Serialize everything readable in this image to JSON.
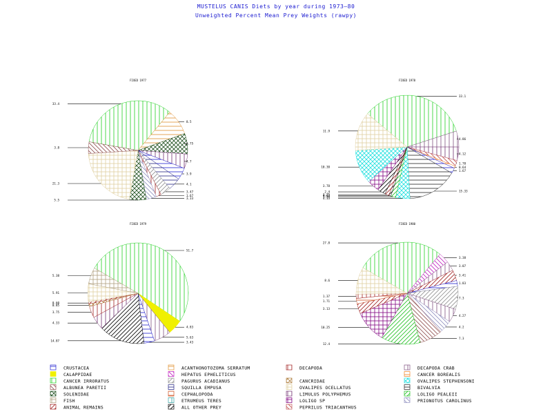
{
  "title": "MUSTELUS CANIS Diets by year during 1973–80",
  "subtitle": "Unweighted Percent Mean Prey Weights (rawpy)",
  "colors": {
    "CRUSTACEA": "#2020d0",
    "CALAPPIDAE": "#f0f000",
    "CANCER IRRORATUS": "#20d020",
    "ALBUNEA PARETII": "#905050",
    "SOLENIDAE": "#205020",
    "FISH": "#b0a080",
    "ANIMAL REMAINS": "#a02020",
    "ACANTHONOTOZOMA SERRATUM": "#e09030",
    "HEPATUS EPHELITICUS": "#c020c0",
    "PAGURUS ACADIANUS": "#909090",
    "SQUILLA EMPUSA": "#202080",
    "CEPHALOPODA": "#d05020",
    "ETRUMEUS TERES": "#30a0a0",
    "ALL OTHER PREY": "#000000",
    "DECAPODA": "#a02020",
    "CANCRIDAE": "#b08040",
    "OVALIPES OCELLATUS": "#e0d0a0",
    "LIMULUS POLYPHEMUS": "#703070",
    "LOLIGO SP": "#800080",
    "PEPRILUS TRIACANTHUS": "#c05050",
    "DECAPODA CRAB": "#805080",
    "CANCER BOREALIS": "#f08020",
    "OVALIPES STEPHENSONI": "#20e0e0",
    "BIVALVIA": "#202020",
    "LOLIGO PEALEII": "#20c020",
    "PRIONOTUS CAROLINUS": "#9090c0"
  },
  "legend": [
    [
      "CRUSTACEA",
      "ACANTHONOTOZOMA SERRATUM",
      "DECAPODA",
      "DECAPODA CRAB"
    ],
    [
      "CALAPPIDAE",
      "HEPATUS EPHELITICUS",
      "CANCER BOREALIS"
    ],
    [
      "CANCER IRRORATUS",
      "PAGURUS ACADIANUS",
      "CANCRIDAE",
      "OVALIPES STEPHENSONI"
    ],
    [
      "ALBUNEA PARETII",
      "SQUILLA EMPUSA",
      "OVALIPES OCELLATUS",
      "BIVALVIA"
    ],
    [
      "SOLENIDAE",
      "CEPHALOPODA",
      "LIMULUS POLYPHEMUS",
      "LOLIGO PEALEII"
    ],
    [
      "FISH",
      "ETRUMEUS TERES",
      "LOLIGO SP",
      "PRIONOTUS CAROLINUS"
    ],
    [
      "ANIMAL REMAINS",
      "ALL OTHER PREY",
      "PEPRILUS TRIACANTHUS"
    ]
  ],
  "chart_data": [
    {
      "type": "pie",
      "title": "FIXED 1977",
      "slices": [
        {
          "label": "CANCER IRRORATUS",
          "value": 33.4
        },
        {
          "label": "ACANTHONOTOZOMA SERRATUM",
          "value": 8.5
        },
        {
          "label": "SOLENIDAE",
          "value": 6.75
        },
        {
          "label": "LIMULUS POLYPHEMUS",
          "value": 4.7
        },
        {
          "label": "CRUSTACEA",
          "value": 3.93
        },
        {
          "label": "SQUILLA EMPUSA",
          "value": 4.14
        },
        {
          "label": "PAGURUS ACADIANUS",
          "value": 3.47
        },
        {
          "label": "DECAPODA",
          "value": 1.67
        },
        {
          "label": "PRIONOTUS CAROLINUS",
          "value": 3.33
        },
        {
          "label": "SOLENIDAE",
          "value": 5.5
        },
        {
          "label": "OVALIPES OCELLATUS",
          "value": 21.3
        },
        {
          "label": "ALBUNEA PARETII",
          "value": 3.8
        }
      ],
      "labels": [
        "33.4",
        "8.5",
        "6.75",
        "4.7",
        "3.9",
        "4.1",
        "3.47",
        "1.67",
        "3.33",
        "5.5",
        "21.3",
        "3.8"
      ]
    },
    {
      "type": "pie",
      "title": "FIXED 1978",
      "slices": [
        {
          "label": "CANCER IRRORATUS",
          "value": 33.1
        },
        {
          "label": "DECAPODA CRAB",
          "value": 4.86
        },
        {
          "label": "LIMULUS POLYPHEMUS",
          "value": 4.12
        },
        {
          "label": "PEPRILUS TRIACANTHUS",
          "value": 1.78
        },
        {
          "label": "CANCER BOREALIS",
          "value": 0.64
        },
        {
          "label": "CRUSTACEA",
          "value": 1.67
        },
        {
          "label": "BIVALVIA",
          "value": 15.33
        },
        {
          "label": "OVALIPES STEPHENSONI",
          "value": 4.33
        },
        {
          "label": "LOLIGO PEALEII",
          "value": 1.5
        },
        {
          "label": "ALL OTHER PREY",
          "value": 0.63
        },
        {
          "label": "ANIMAL REMAINS",
          "value": 1.25
        },
        {
          "label": "ALL OTHER PREY",
          "value": 2.4
        },
        {
          "label": "LOLIGO SP",
          "value": 3.78
        },
        {
          "label": "OVALIPES STEPHENSONI",
          "value": 10.3
        },
        {
          "label": "OVALIPES OCELLATUS",
          "value": 11.9
        }
      ],
      "labels": [
        "33.1",
        "4.86",
        "4.12",
        "1.78",
        "0.64",
        "1.67",
        "15.33",
        "4.33",
        "1.50",
        "0.63",
        "1.25",
        "2.4",
        "3.78",
        "10.30",
        "11.9"
      ]
    },
    {
      "type": "pie",
      "title": "FIXED 1979",
      "slices": [
        {
          "label": "CANCER IRRORATUS",
          "value": 51.7
        },
        {
          "label": "CALAPPIDAE",
          "value": 4.83
        },
        {
          "label": "DECAPODA CRAB",
          "value": 5.63
        },
        {
          "label": "CRUSTACEA",
          "value": 3.43
        },
        {
          "label": "ALL OTHER PREY",
          "value": 14.87
        },
        {
          "label": "LIMULUS POLYPHEMUS",
          "value": 4.33
        },
        {
          "label": "DECAPODA",
          "value": 3.75
        },
        {
          "label": "CANCRIDAE",
          "value": 0.85
        },
        {
          "label": "ANIMAL REMAINS",
          "value": 0.6
        },
        {
          "label": "OVALIPES OCELLATUS",
          "value": 5.91
        },
        {
          "label": "FISH",
          "value": 5.38
        }
      ],
      "labels": [
        "51.7",
        "4.83",
        "5.63",
        "3.43",
        "14.87",
        "4.33",
        "3.75",
        "0.85",
        "0.60",
        "5.91",
        "5.38"
      ]
    },
    {
      "type": "pie",
      "title": "FIXED 1980",
      "slices": [
        {
          "label": "CANCER IRRORATUS",
          "value": 27.8
        },
        {
          "label": "HEPATUS EPHELITICUS",
          "value": 3.38
        },
        {
          "label": "DECAPODA CRAB",
          "value": 3.07
        },
        {
          "label": "ANIMAL REMAINS",
          "value": 3.41
        },
        {
          "label": "CRUSTACEA",
          "value": 1.83
        },
        {
          "label": "PAGURUS ACADIANUS",
          "value": 7.3
        },
        {
          "label": "DECAPODA CRAB",
          "value": 4.27
        },
        {
          "label": "PRIONOTUS CAROLINUS",
          "value": 4.2
        },
        {
          "label": "ALBUNEA PARETII",
          "value": 7.3
        },
        {
          "label": "LOLIGO PEALEII",
          "value": 12.4
        },
        {
          "label": "LOLIGO SP",
          "value": 10.25
        },
        {
          "label": "ANIMAL REMAINS",
          "value": 3.13
        },
        {
          "label": "CEPHALOPODA",
          "value": 1.71
        },
        {
          "label": "DECAPODA",
          "value": 1.37
        },
        {
          "label": "OVALIPES OCELLATUS",
          "value": 8.6
        }
      ],
      "labels": [
        "27.8",
        "3.38",
        "3.07",
        "3.41",
        "1.83",
        "7.3",
        "4.27",
        "4.2",
        "7.3",
        "12.4",
        "10.25",
        "3.13",
        "1.71",
        "1.37",
        "8.6"
      ]
    }
  ]
}
